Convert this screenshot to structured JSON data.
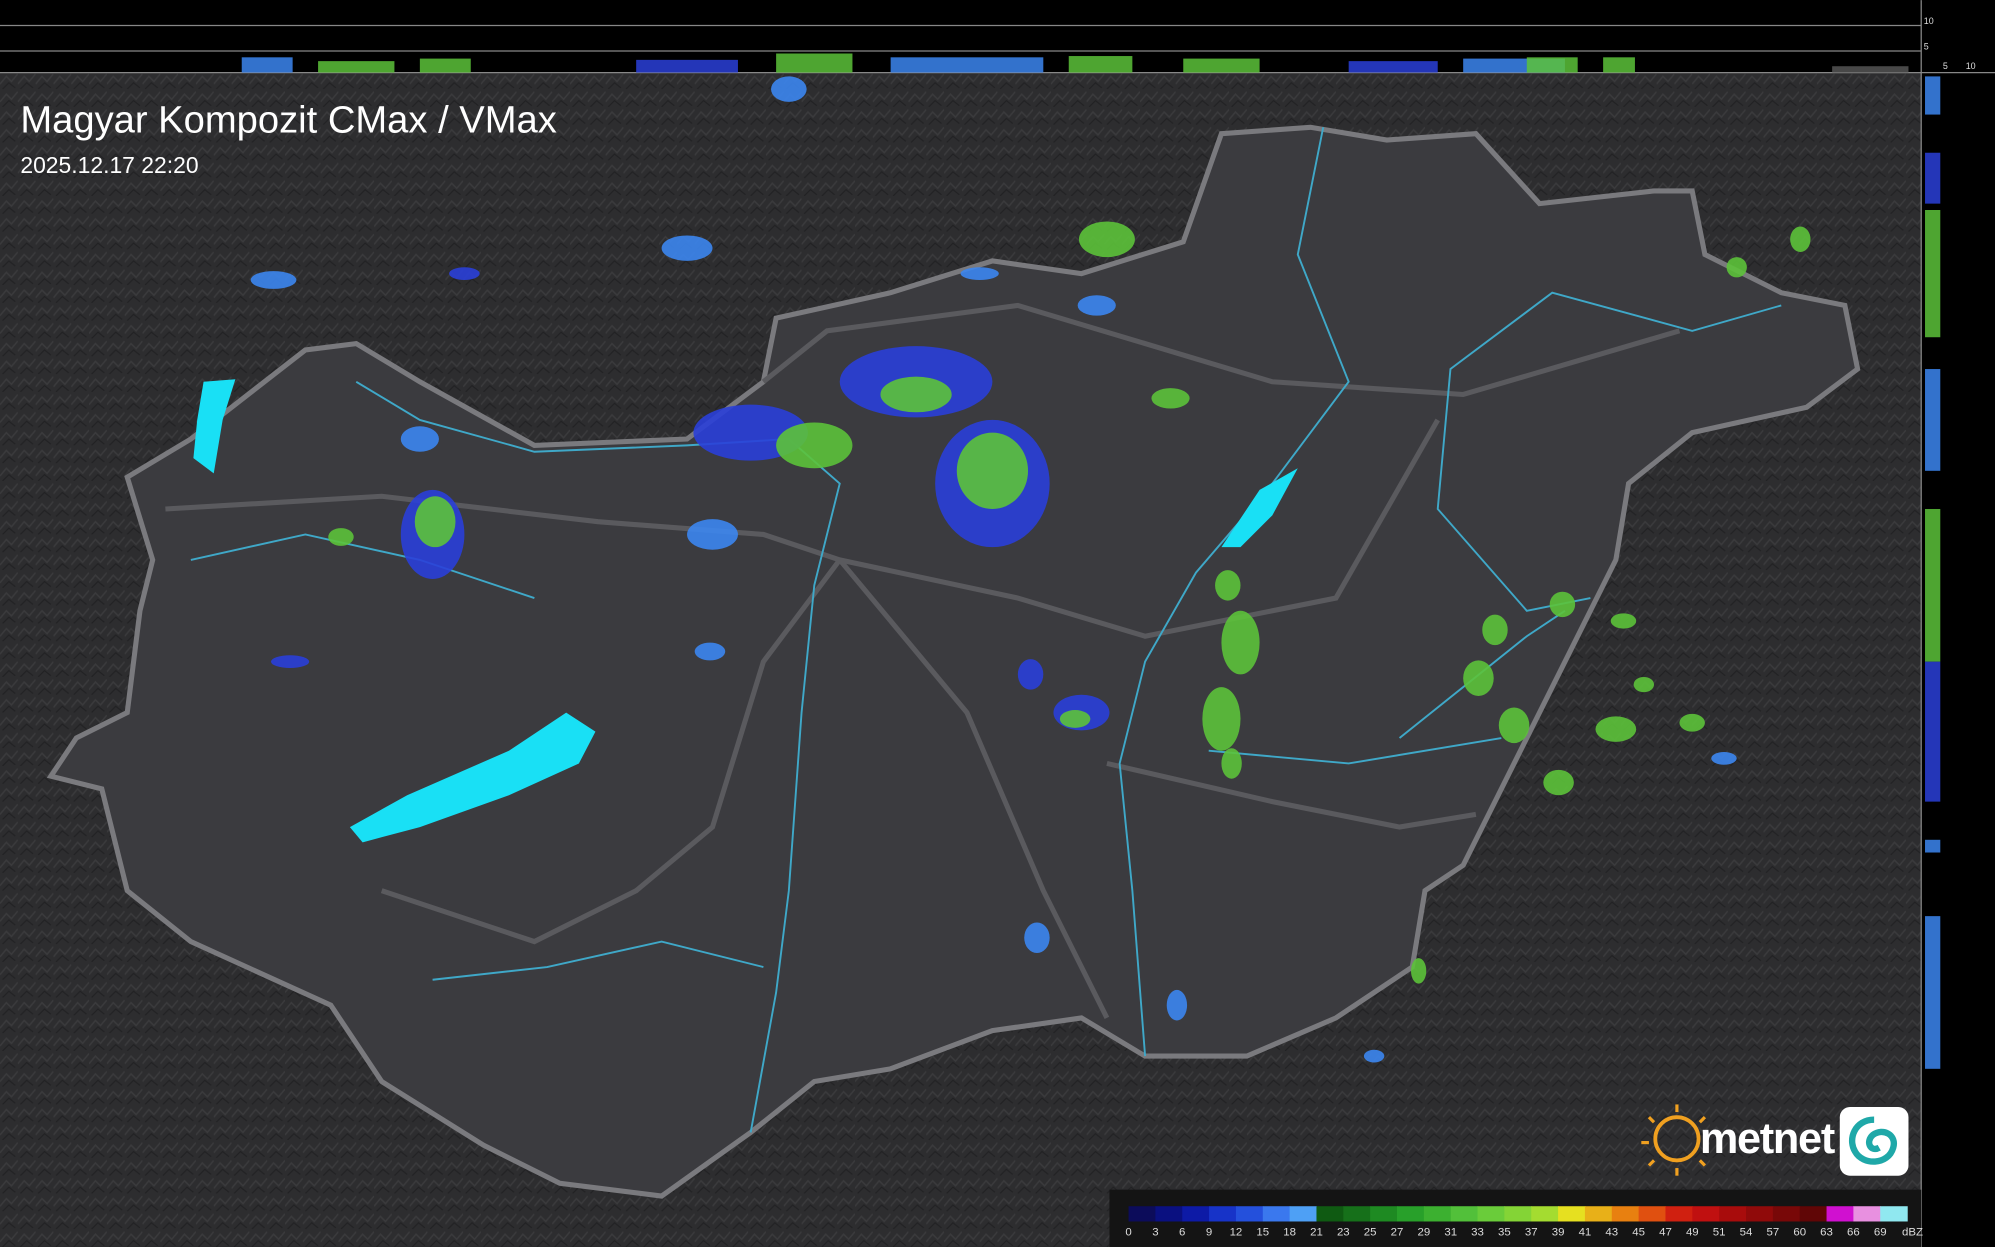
{
  "header": {
    "title": "Magyar Kompozit CMax / VMax",
    "timestamp": "2025.12.17 22:20"
  },
  "profile_axis": {
    "top_labels": [
      "10",
      "5"
    ],
    "side_labels": [
      "5",
      "10"
    ]
  },
  "legend": {
    "unit": "dBZ",
    "entries": [
      {
        "label": "0",
        "color": "#0c0c5a"
      },
      {
        "label": "3",
        "color": "#0a1080"
      },
      {
        "label": "6",
        "color": "#0d1aa6"
      },
      {
        "label": "9",
        "color": "#1733c8"
      },
      {
        "label": "12",
        "color": "#2450dc"
      },
      {
        "label": "15",
        "color": "#3a78ee"
      },
      {
        "label": "18",
        "color": "#4ea0f5"
      },
      {
        "label": "21",
        "color": "#0f5a12"
      },
      {
        "label": "23",
        "color": "#16701a"
      },
      {
        "label": "25",
        "color": "#1e8a22"
      },
      {
        "label": "27",
        "color": "#28a02a"
      },
      {
        "label": "29",
        "color": "#3cb030"
      },
      {
        "label": "31",
        "color": "#52c03a"
      },
      {
        "label": "33",
        "color": "#6acc3a"
      },
      {
        "label": "35",
        "color": "#84d436"
      },
      {
        "label": "37",
        "color": "#a4dc30"
      },
      {
        "label": "39",
        "color": "#e6e020"
      },
      {
        "label": "41",
        "color": "#e8b018"
      },
      {
        "label": "43",
        "color": "#e88010"
      },
      {
        "label": "45",
        "color": "#e05010"
      },
      {
        "label": "47",
        "color": "#d02010"
      },
      {
        "label": "49",
        "color": "#c01010"
      },
      {
        "label": "51",
        "color": "#a80c0c"
      },
      {
        "label": "54",
        "color": "#900a0a"
      },
      {
        "label": "57",
        "color": "#780808"
      },
      {
        "label": "60",
        "color": "#600606"
      },
      {
        "label": "63",
        "color": "#d010d0"
      },
      {
        "label": "66",
        "color": "#e890e0"
      },
      {
        "label": "69",
        "color": "#90e8f0"
      }
    ]
  },
  "logo": {
    "text": "metnet"
  }
}
